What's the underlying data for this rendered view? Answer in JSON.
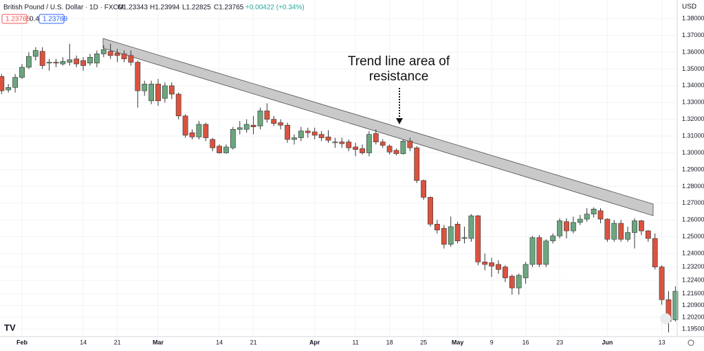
{
  "header": {
    "symbol": "British Pound / U.S. Dollar · 1D · FXCM",
    "open": "O1.23343",
    "high": "H1.23994",
    "low": "L1.22825",
    "close": "C1.23765",
    "change": "+0.00422 (+0.34%)",
    "bid": "1.23765",
    "spread": "0.4",
    "ask": "1.23769",
    "currency": "USD"
  },
  "chart_data": {
    "type": "candlestick",
    "annotation_lines": [
      "Trend line area of",
      "resistance"
    ],
    "up_color": "#6ba67f",
    "down_color": "#d9533f",
    "grid": true,
    "categories": [
      null,
      null,
      null,
      "Feb",
      null,
      null,
      null,
      null,
      null,
      null,
      null,
      null,
      "14",
      null,
      null,
      null,
      null,
      "21",
      null,
      null,
      null,
      null,
      null,
      "Mar",
      null,
      null,
      null,
      null,
      null,
      null,
      null,
      null,
      "14",
      null,
      null,
      null,
      null,
      "21",
      null,
      null,
      null,
      null,
      null,
      null,
      null,
      null,
      "Apr",
      null,
      null,
      null,
      null,
      null,
      "11",
      null,
      null,
      null,
      null,
      "18",
      null,
      null,
      null,
      null,
      "25",
      null,
      null,
      null,
      null,
      "May",
      null,
      null,
      null,
      null,
      "9",
      null,
      null,
      null,
      null,
      "16",
      null,
      null,
      null,
      null,
      "23",
      null,
      null,
      null,
      null,
      null,
      null,
      "Jun",
      null,
      null,
      null,
      null,
      null,
      null,
      null,
      "13",
      null,
      null
    ],
    "open": [
      1.3455,
      1.3375,
      1.339,
      1.345,
      1.351,
      1.3575,
      1.3605,
      1.3535,
      1.354,
      1.353,
      1.354,
      1.356,
      1.355,
      1.3535,
      1.3535,
      1.359,
      1.3605,
      1.3595,
      1.359,
      1.358,
      1.354,
      1.337,
      1.331,
      1.341,
      1.3325,
      1.34,
      1.335,
      1.322,
      1.312,
      1.3095,
      1.317,
      1.308,
      1.304,
      1.3,
      1.303,
      1.314,
      1.314,
      1.3165,
      1.316,
      1.325,
      1.32,
      1.318,
      1.3165,
      1.308,
      1.309,
      1.313,
      1.3125,
      1.311,
      1.3095,
      1.306,
      1.3065,
      1.3065,
      1.3035,
      1.3025,
      1.3,
      1.3115,
      1.3065,
      1.304,
      1.3015,
      1.2995,
      1.307,
      1.303,
      1.2835,
      1.2735,
      1.2575,
      1.255,
      1.2455,
      1.2575,
      1.249,
      1.249,
      1.2625,
      1.235,
      1.2345,
      1.2335,
      1.232,
      1.2265,
      1.2195,
      1.2255,
      1.2335,
      1.2495,
      1.2335,
      1.2475,
      1.2505,
      1.259,
      1.2535,
      1.2585,
      1.2605,
      1.2635,
      1.2655,
      1.2605,
      1.2485,
      1.258,
      1.2485,
      1.2525,
      1.2595,
      1.2535,
      1.249,
      1.232,
      1.2125,
      1.2005
    ],
    "high": [
      1.347,
      1.341,
      1.347,
      1.353,
      1.36,
      1.363,
      1.363,
      1.356,
      1.356,
      1.357,
      1.365,
      1.358,
      1.357,
      1.359,
      1.361,
      1.364,
      1.365,
      1.362,
      1.361,
      1.361,
      1.355,
      1.343,
      1.343,
      1.344,
      1.342,
      1.342,
      1.336,
      1.323,
      1.314,
      1.319,
      1.318,
      1.309,
      1.305,
      1.305,
      1.3155,
      1.319,
      1.32,
      1.322,
      1.327,
      1.3295,
      1.322,
      1.32,
      1.318,
      1.311,
      1.3155,
      1.315,
      1.315,
      1.313,
      1.3135,
      1.309,
      1.309,
      1.308,
      1.306,
      1.305,
      1.313,
      1.314,
      1.308,
      1.305,
      1.3025,
      1.308,
      1.309,
      1.304,
      1.284,
      1.274,
      1.26,
      1.257,
      1.262,
      1.259,
      1.256,
      1.2635,
      1.263,
      1.24,
      1.2375,
      1.236,
      1.233,
      1.2275,
      1.228,
      1.235,
      1.2505,
      1.251,
      1.2485,
      1.252,
      1.261,
      1.261,
      1.262,
      1.263,
      1.267,
      1.2675,
      1.267,
      1.261,
      1.26,
      1.26,
      1.256,
      1.261,
      1.26,
      1.254,
      1.252,
      1.233,
      1.2175,
      1.2205
    ],
    "low": [
      1.335,
      1.336,
      1.336,
      1.344,
      1.35,
      1.355,
      1.35,
      1.349,
      1.351,
      1.352,
      1.352,
      1.351,
      1.349,
      1.352,
      1.351,
      1.357,
      1.356,
      1.354,
      1.354,
      1.352,
      1.327,
      1.334,
      1.329,
      1.328,
      1.33,
      1.332,
      1.32,
      1.309,
      1.308,
      1.308,
      1.307,
      1.301,
      1.2995,
      1.2995,
      1.302,
      1.311,
      1.312,
      1.311,
      1.314,
      1.318,
      1.316,
      1.314,
      1.306,
      1.305,
      1.307,
      1.309,
      1.308,
      1.307,
      1.306,
      1.303,
      1.303,
      1.301,
      1.298,
      1.299,
      1.298,
      1.305,
      1.303,
      1.299,
      1.2985,
      1.299,
      1.301,
      1.282,
      1.272,
      1.256,
      1.252,
      1.243,
      1.244,
      1.246,
      1.246,
      1.247,
      1.233,
      1.23,
      1.226,
      1.228,
      1.223,
      1.2155,
      1.2155,
      1.222,
      1.232,
      1.232,
      1.232,
      1.246,
      1.249,
      1.249,
      1.252,
      1.257,
      1.259,
      1.2615,
      1.258,
      1.247,
      1.247,
      1.247,
      1.247,
      1.243,
      1.251,
      1.247,
      1.2305,
      1.2095,
      1.193,
      1.1995
    ],
    "close": [
      1.337,
      1.339,
      1.345,
      1.351,
      1.3575,
      1.361,
      1.352,
      1.354,
      1.3535,
      1.3545,
      1.3555,
      1.353,
      1.352,
      1.357,
      1.359,
      1.3615,
      1.358,
      1.358,
      1.356,
      1.354,
      1.337,
      1.341,
      1.341,
      1.331,
      1.34,
      1.335,
      1.322,
      1.3105,
      1.3095,
      1.317,
      1.309,
      1.303,
      1.3,
      1.3035,
      1.314,
      1.315,
      1.317,
      1.3155,
      1.325,
      1.32,
      1.3175,
      1.3165,
      1.308,
      1.309,
      1.313,
      1.312,
      1.3105,
      1.309,
      1.3075,
      1.3065,
      1.3055,
      1.303,
      1.302,
      1.3,
      1.311,
      1.3065,
      1.3045,
      1.3005,
      1.2995,
      1.307,
      1.303,
      1.2835,
      1.2735,
      1.2575,
      1.254,
      1.2455,
      1.256,
      1.2475,
      1.2495,
      1.2625,
      1.235,
      1.2335,
      1.2325,
      1.2305,
      1.2255,
      1.2195,
      1.227,
      1.2335,
      1.2495,
      1.2335,
      1.2475,
      1.2505,
      1.2595,
      1.2535,
      1.2585,
      1.2605,
      1.2635,
      1.2665,
      1.2605,
      1.2485,
      1.258,
      1.2485,
      1.2525,
      1.2595,
      1.2535,
      1.249,
      1.232,
      1.2125,
      1.1995,
      1.2175
    ],
    "ylim": [
      1.1905,
      1.3911
    ],
    "yticks": [
      {
        "value": 1.195,
        "label": "1.19500"
      },
      {
        "value": 1.202,
        "label": "1.20200"
      },
      {
        "value": 1.209,
        "label": "1.20900"
      },
      {
        "value": 1.216,
        "label": "1.21600"
      },
      {
        "value": 1.224,
        "label": "1.22400"
      },
      {
        "value": 1.232,
        "label": "1.23200"
      },
      {
        "value": 1.24,
        "label": "1.24000"
      },
      {
        "value": 1.25,
        "label": "1.25000"
      },
      {
        "value": 1.26,
        "label": "1.26000"
      },
      {
        "value": 1.27,
        "label": "1.27000"
      },
      {
        "value": 1.28,
        "label": "1.28000"
      },
      {
        "value": 1.29,
        "label": "1.29000"
      },
      {
        "value": 1.3,
        "label": "1.30000"
      },
      {
        "value": 1.31,
        "label": "1.31000"
      },
      {
        "value": 1.32,
        "label": "1.32000"
      },
      {
        "value": 1.33,
        "label": "1.33000"
      },
      {
        "value": 1.34,
        "label": "1.34000"
      },
      {
        "value": 1.35,
        "label": "1.35000"
      },
      {
        "value": 1.36,
        "label": "1.36000"
      },
      {
        "value": 1.37,
        "label": "1.37000"
      },
      {
        "value": 1.38,
        "label": "1.38000"
      }
    ]
  }
}
